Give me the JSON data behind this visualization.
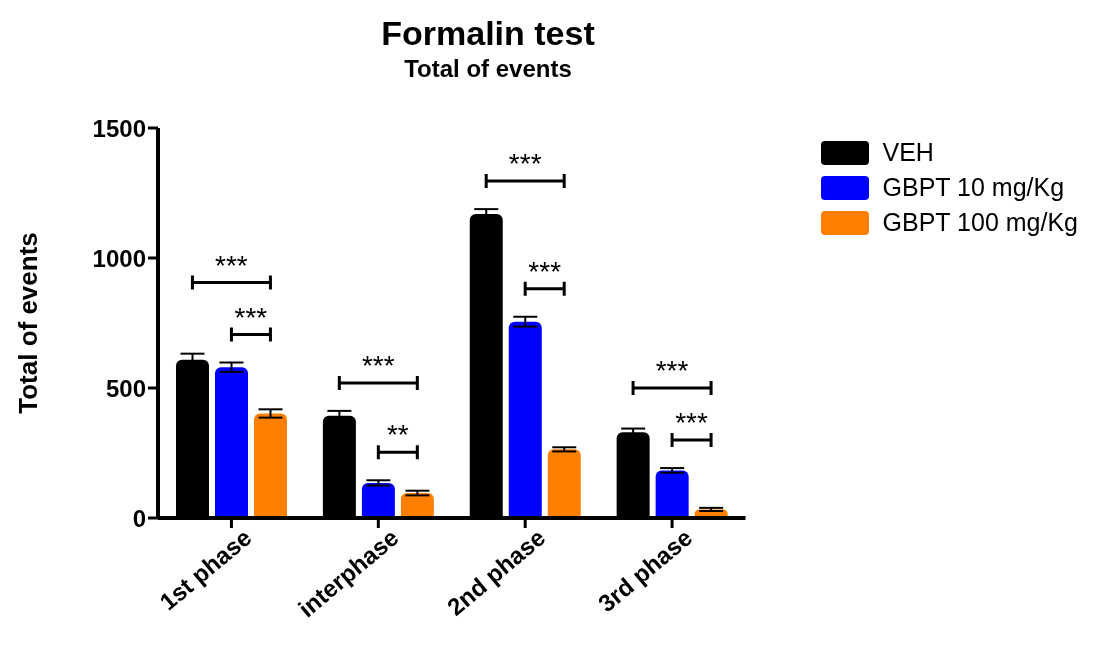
{
  "chart_data": {
    "type": "bar",
    "title": "Formalin test",
    "subtitle": "Total of events",
    "ylabel": "Total of events",
    "categories": [
      "1st phase",
      "interphase",
      "2nd phase",
      "3rd phase"
    ],
    "series": [
      {
        "name": "VEH",
        "color": "#000000",
        "values": [
          609,
          393,
          1169,
          330
        ],
        "errors": [
          23,
          19,
          19,
          14
        ]
      },
      {
        "name": "GBPT 10 mg/Kg",
        "color": "#0000ff",
        "values": [
          580,
          135,
          755,
          183
        ],
        "errors": [
          18,
          10,
          19,
          9
        ]
      },
      {
        "name": "GBPT 100 mg/Kg",
        "color": "#ff8000",
        "values": [
          402,
          96,
          264,
          33
        ],
        "errors": [
          16,
          9,
          8,
          6
        ]
      }
    ],
    "ylim": [
      0,
      1500
    ],
    "yticks": [
      0,
      500,
      1000,
      1500
    ],
    "grid": false,
    "legend": "right",
    "annotations": [
      "***",
      "***",
      "***",
      "**",
      "***",
      "***",
      "***",
      "***"
    ]
  }
}
